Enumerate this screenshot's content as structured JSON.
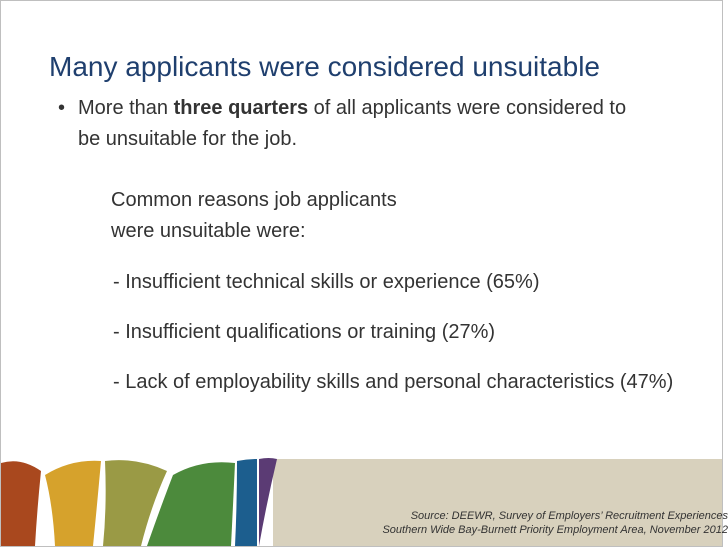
{
  "title": "Many applicants were considered unsuitable",
  "bullet": {
    "before": "More than ",
    "bold": "three quarters",
    "after": " of all applicants were considered to be unsuitable for the job."
  },
  "intro": "Common reasons job applicants were unsuitable were:",
  "reasons": [
    "- Insufficient technical skills or experience (65%)",
    "- Insufficient qualifications or training (27%)",
    "- Lack of employability skills and personal characteristics (47%)"
  ],
  "source": [
    "Source: DEEWR, Survey of Employers’ Recruitment Experiences",
    "Southern Wide Bay-Burnett Priority Employment Area, November 2012"
  ]
}
